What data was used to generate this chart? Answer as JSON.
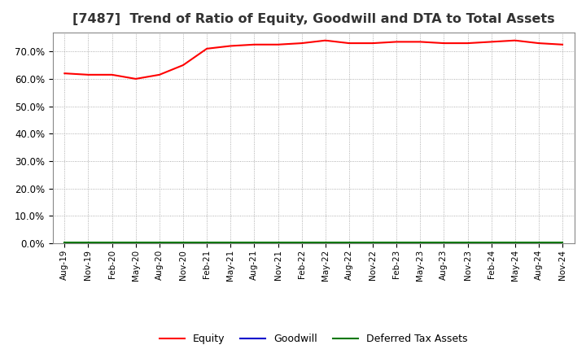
{
  "title": "[7487]  Trend of Ratio of Equity, Goodwill and DTA to Total Assets",
  "x_labels": [
    "Aug-19",
    "Nov-19",
    "Feb-20",
    "May-20",
    "Aug-20",
    "Nov-20",
    "Feb-21",
    "May-21",
    "Aug-21",
    "Nov-21",
    "Feb-22",
    "May-22",
    "Aug-22",
    "Nov-22",
    "Feb-23",
    "May-23",
    "Aug-23",
    "Nov-23",
    "Feb-24",
    "May-24",
    "Aug-24",
    "Nov-24"
  ],
  "equity": [
    62.0,
    61.5,
    61.5,
    60.0,
    61.5,
    65.0,
    71.0,
    72.0,
    72.5,
    72.5,
    73.0,
    74.0,
    73.0,
    73.0,
    73.5,
    73.5,
    73.0,
    73.0,
    73.5,
    74.0,
    73.0,
    72.5
  ],
  "goodwill": [
    0.0,
    0.0,
    0.0,
    0.0,
    0.0,
    0.0,
    0.0,
    0.0,
    0.0,
    0.0,
    0.0,
    0.0,
    0.0,
    0.0,
    0.0,
    0.0,
    0.0,
    0.0,
    0.0,
    0.0,
    0.0,
    0.0
  ],
  "dta": [
    0.3,
    0.3,
    0.3,
    0.3,
    0.3,
    0.3,
    0.3,
    0.3,
    0.3,
    0.3,
    0.3,
    0.3,
    0.3,
    0.3,
    0.3,
    0.3,
    0.3,
    0.3,
    0.3,
    0.3,
    0.3,
    0.3
  ],
  "equity_color": "#ff0000",
  "goodwill_color": "#0000cc",
  "dta_color": "#007700",
  "ylim": [
    0,
    77
  ],
  "yticks": [
    0,
    10,
    20,
    30,
    40,
    50,
    60,
    70
  ],
  "background_color": "#ffffff",
  "plot_bg_color": "#ffffff",
  "grid_color": "#999999",
  "title_fontsize": 11.5,
  "tick_fontsize": 8.5,
  "xtick_fontsize": 7.5,
  "legend_labels": [
    "Equity",
    "Goodwill",
    "Deferred Tax Assets"
  ]
}
